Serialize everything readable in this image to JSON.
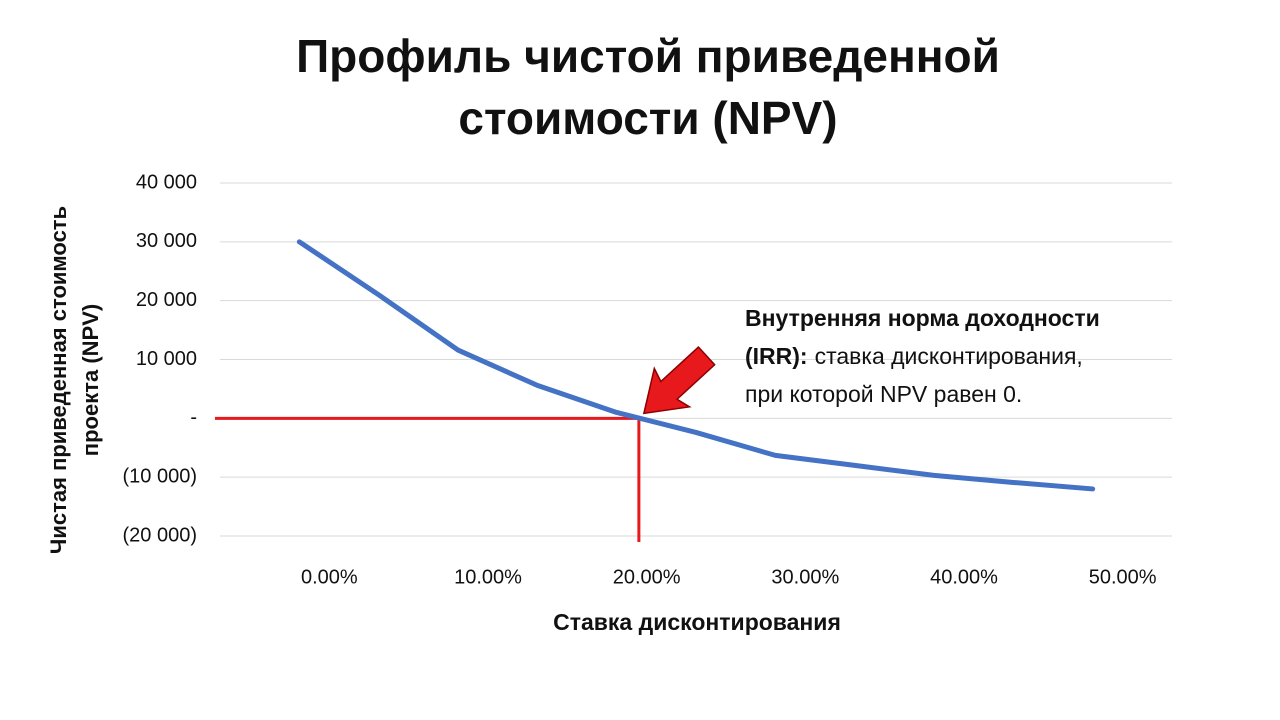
{
  "chart_data": {
    "type": "line",
    "title": [
      "Профиль чистой приведенной",
      "стоимости (NPV)"
    ],
    "y_label": [
      "Чистая приведенная стоимость",
      "проекта (NPV)"
    ],
    "x_label": "Ставка дисконтирования",
    "x": [
      0,
      5,
      10,
      15,
      20,
      25,
      30,
      35,
      40,
      45,
      50
    ],
    "series": [
      {
        "name": "NPV",
        "color": "#4472c4",
        "values": [
          30000,
          21000,
          11600,
          5600,
          1000,
          -2400,
          -6300,
          -8000,
          -9700,
          -10900,
          -12000
        ]
      }
    ],
    "xlim": [
      -5,
      55
    ],
    "xticks": [
      {
        "value": 0,
        "label": "0.00%"
      },
      {
        "value": 10,
        "label": "10.00%"
      },
      {
        "value": 20,
        "label": "20.00%"
      },
      {
        "value": 30,
        "label": "30.00%"
      },
      {
        "value": 40,
        "label": "40.00%"
      },
      {
        "value": 50,
        "label": "50.00%"
      }
    ],
    "ylim": [
      -20000,
      40000
    ],
    "yticks": [
      {
        "value": 40000,
        "label": "40 000"
      },
      {
        "value": 30000,
        "label": "30 000"
      },
      {
        "value": 20000,
        "label": "20 000"
      },
      {
        "value": 10000,
        "label": "10 000"
      },
      {
        "value": 0,
        "label": "-"
      },
      {
        "value": -10000,
        "label": "(10 000)"
      },
      {
        "value": -20000,
        "label": "(20 000)"
      }
    ],
    "grid": true,
    "irr": 21.4,
    "irr_color": "#e8191c",
    "annotation": [
      {
        "bold": "Внутренняя норма доходности"
      },
      {
        "bold": "(IRR):",
        "text": "ставка дисконтирования,"
      },
      {
        "text": "при которой NPV равен 0."
      }
    ]
  }
}
